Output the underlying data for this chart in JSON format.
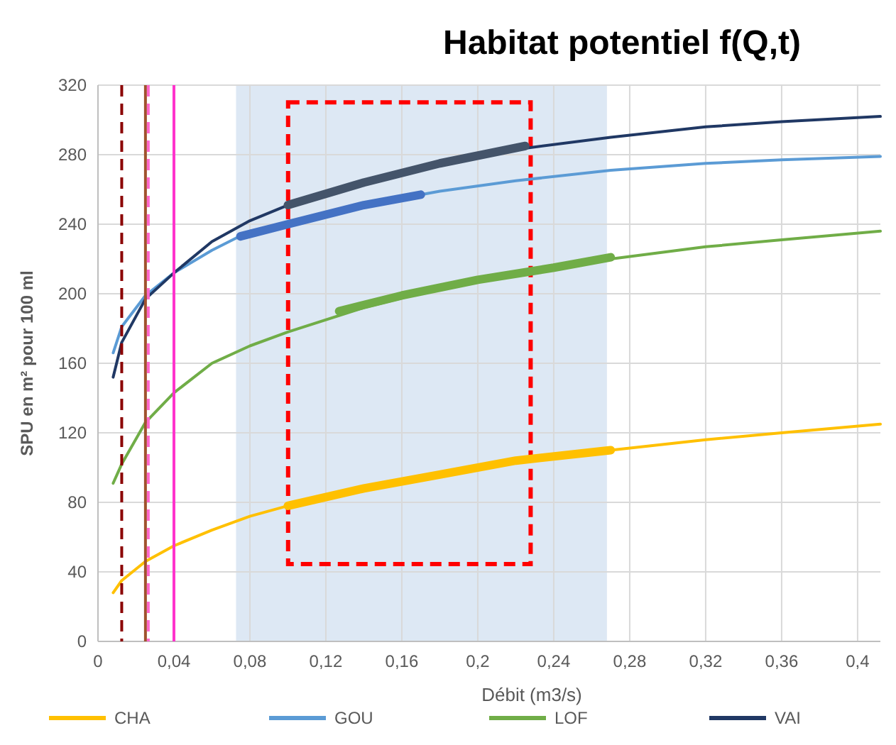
{
  "chart_data": {
    "type": "line",
    "title": "Habitat potentiel f(Q,t)",
    "xlabel": "Débit (m3/s)",
    "ylabel": "SPU en m² pour 100 ml",
    "xlim": [
      0,
      0.412
    ],
    "ylim": [
      0,
      320
    ],
    "xticks": [
      0,
      {
        "value": 0.04,
        "label": "0,04"
      },
      {
        "value": 0.08,
        "label": "0,08"
      },
      {
        "value": 0.12,
        "label": "0,12"
      },
      {
        "value": 0.16,
        "label": "0,16"
      },
      {
        "value": 0.2,
        "label": "0,2"
      },
      {
        "value": 0.24,
        "label": "0,24"
      },
      {
        "value": 0.28,
        "label": "0,28"
      },
      {
        "value": 0.32,
        "label": "0,32"
      },
      {
        "value": 0.36,
        "label": "0,36"
      },
      {
        "value": 0.4,
        "label": "0,4"
      }
    ],
    "yticks": [
      0,
      40,
      80,
      120,
      160,
      200,
      240,
      280,
      320
    ],
    "grid": true,
    "legend": "bottom",
    "marker": "none",
    "line_style": "solid",
    "x": [
      0.008,
      0.0125,
      0.025,
      0.04,
      0.06,
      0.08,
      0.1,
      0.14,
      0.18,
      0.22,
      0.27,
      0.32,
      0.36,
      0.412
    ],
    "series": [
      {
        "name": "CHA",
        "color": "#ffc000",
        "values": [
          28,
          35,
          46,
          55,
          64,
          72,
          78,
          88,
          96,
          104,
          110,
          116,
          120,
          125
        ]
      },
      {
        "name": "GOU",
        "color": "#5b9bd5",
        "values": [
          166,
          181,
          199,
          212,
          225,
          236,
          240,
          251,
          259,
          265,
          271,
          275,
          277,
          279
        ]
      },
      {
        "name": "LOF",
        "color": "#70ad47",
        "values": [
          91,
          102,
          126,
          143,
          160,
          170,
          178,
          192,
          203,
          211,
          220,
          227,
          231,
          236
        ]
      },
      {
        "name": "VAI",
        "color": "#203864",
        "values": [
          152,
          172,
          197,
          212,
          230,
          242,
          251,
          264,
          275,
          283,
          290,
          296,
          299,
          302
        ]
      },
      {
        "color": "#ffc000",
        "x": [
          0.1,
          0.14,
          0.18,
          0.22,
          0.27
        ],
        "values": [
          78,
          88,
          96,
          104,
          110
        ]
      },
      {
        "color": "#4472c4",
        "x": [
          0.075,
          0.1,
          0.14,
          0.17
        ],
        "values": [
          233,
          240,
          251,
          257
        ]
      },
      {
        "color": "#70ad47",
        "x": [
          0.127,
          0.16,
          0.2,
          0.24,
          0.27
        ],
        "values": [
          190,
          199,
          208,
          215,
          221
        ]
      },
      {
        "color": "#44546a",
        "x": [
          0.1,
          0.14,
          0.18,
          0.225
        ],
        "values": [
          251,
          264,
          275,
          285
        ]
      }
    ],
    "ref_lines": [
      {
        "axis": "x",
        "value": 0.0125,
        "color": "#8b0000",
        "line_style": "dashed"
      },
      {
        "axis": "x",
        "value": 0.025,
        "color": "#a0522d",
        "line_style": "solid"
      },
      {
        "axis": "x",
        "value": 0.0265,
        "color": "#ff66cc",
        "line_style": "dashed"
      },
      {
        "axis": "x",
        "value": 0.04,
        "color": "#ff33cc",
        "line_style": "solid"
      }
    ],
    "bands": [
      {
        "axis": "x",
        "from": 0.0727,
        "to": 0.268,
        "color": "#dde8f4"
      }
    ]
  }
}
